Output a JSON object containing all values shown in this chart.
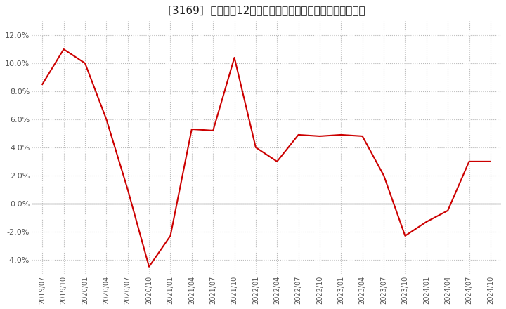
{
  "title": "[3169]  売上高の12か月移動合計の対前年同期増減率の推移",
  "line_color": "#cc0000",
  "background_color": "#ffffff",
  "plot_bg_color": "#ffffff",
  "grid_color": "#bbbbbb",
  "zero_line_color": "#333333",
  "ylim": [
    -0.05,
    0.13
  ],
  "yticks": [
    -0.04,
    -0.02,
    0.0,
    0.02,
    0.04,
    0.06,
    0.08,
    0.1,
    0.12
  ],
  "dates": [
    "2019/07",
    "2019/10",
    "2020/01",
    "2020/04",
    "2020/07",
    "2020/10",
    "2021/01",
    "2021/04",
    "2021/07",
    "2021/10",
    "2022/01",
    "2022/04",
    "2022/07",
    "2022/10",
    "2023/01",
    "2023/04",
    "2023/07",
    "2023/10",
    "2024/01",
    "2024/04",
    "2024/07",
    "2024/10"
  ],
  "values": [
    0.085,
    0.11,
    0.1,
    0.06,
    0.01,
    -0.045,
    -0.023,
    0.053,
    0.052,
    0.104,
    0.04,
    0.03,
    0.049,
    0.048,
    0.049,
    0.048,
    0.02,
    -0.023,
    -0.013,
    -0.005,
    0.03,
    0.03
  ],
  "title_fontsize": 11,
  "tick_fontsize": 8,
  "xtick_fontsize": 7
}
